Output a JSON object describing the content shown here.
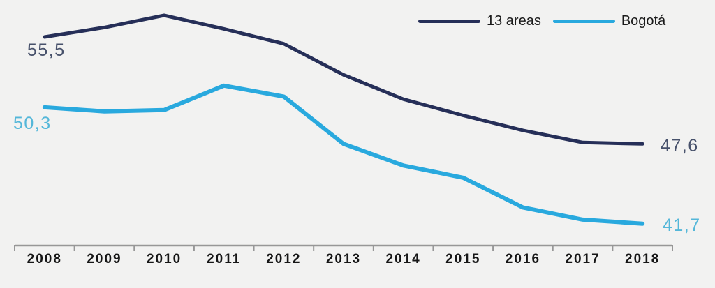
{
  "colors": {
    "background": "#f2f2f1",
    "axis": "#979797",
    "axis_label": "#161616",
    "legend_text": "#1a1a1a",
    "series0_line": "#262f58",
    "series1_line": "#29a9de",
    "series0_value_label": "#47516b",
    "series1_value_label": "#54b7d9"
  },
  "legend": {
    "items": [
      {
        "label": "13 areas",
        "color": "#262f58"
      },
      {
        "label": "Bogotá",
        "color": "#29a9de"
      }
    ]
  },
  "chart_data": {
    "type": "line",
    "title": "",
    "xlabel": "",
    "ylabel": "",
    "grid": false,
    "legend_position": "top-right",
    "categories": [
      "2008",
      "2009",
      "2010",
      "2011",
      "2012",
      "2013",
      "2014",
      "2015",
      "2016",
      "2017",
      "2018"
    ],
    "series": [
      {
        "name": "13 areas",
        "color": "#262f58",
        "values": [
          55.5,
          56.2,
          57.1,
          56.1,
          55.0,
          52.7,
          50.9,
          49.7,
          48.6,
          47.7,
          47.6
        ],
        "start_label": "55,5",
        "end_label": "47,6"
      },
      {
        "name": "Bogotá",
        "color": "#29a9de",
        "values": [
          50.3,
          50.0,
          50.1,
          51.9,
          51.1,
          47.6,
          46.0,
          45.1,
          42.9,
          42.0,
          41.7
        ],
        "start_label": "50,3",
        "end_label": "41,7"
      }
    ],
    "ylim": [
      40,
      59
    ]
  }
}
